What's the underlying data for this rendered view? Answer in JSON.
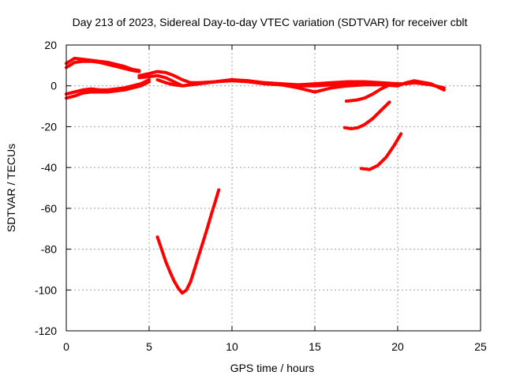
{
  "chart_data": {
    "type": "line",
    "title": "Day 213 of 2023, Sidereal Day-to-day VTEC variation (SDTVAR) for receiver cblt",
    "xlabel": "GPS time / hours",
    "ylabel": "SDTVAR / TECUs",
    "xlim": [
      0,
      25
    ],
    "ylim": [
      -120,
      20
    ],
    "xticks": [
      0,
      5,
      10,
      15,
      20,
      25
    ],
    "yticks": [
      -120,
      -100,
      -80,
      -60,
      -40,
      -20,
      0,
      20
    ],
    "grid": true,
    "legend": "none",
    "color": "#ff0000",
    "series": [
      {
        "x": [
          0,
          0.5,
          1,
          1.5,
          2,
          2.5,
          3,
          3.5,
          4,
          4.4
        ],
        "y": [
          11,
          13.5,
          13,
          12.5,
          12,
          11.5,
          10.5,
          9.5,
          8,
          7.5
        ]
      },
      {
        "x": [
          0,
          0.5,
          1,
          1.5,
          2,
          2.5,
          3,
          3.5,
          4,
          4.4
        ],
        "y": [
          9,
          11.5,
          12,
          12,
          11.5,
          10.5,
          9.5,
          8.5,
          7.5,
          7
        ]
      },
      {
        "x": [
          4.4,
          5,
          5.5,
          6,
          6.5,
          7,
          7.5,
          8,
          9,
          10,
          11,
          12,
          13,
          14,
          15,
          16,
          17,
          18,
          19,
          20,
          20.5,
          21,
          22,
          22.8
        ],
        "y": [
          5,
          6,
          7,
          6.5,
          5,
          3,
          1.5,
          1.5,
          2,
          3,
          2.5,
          1.5,
          1,
          0.5,
          1,
          1.5,
          2,
          2,
          1.5,
          1,
          1,
          1.5,
          0.5,
          -1
        ]
      },
      {
        "x": [
          4.4,
          5,
          5.5,
          6,
          6.5,
          7,
          7.5,
          8,
          9,
          10,
          11,
          12,
          13,
          14,
          15,
          16,
          17,
          18,
          19,
          20,
          20.5,
          21,
          22,
          22.8
        ],
        "y": [
          4,
          4.5,
          5,
          4,
          2,
          0,
          0.5,
          1,
          2,
          2.5,
          2,
          1,
          0.5,
          0,
          0,
          0.5,
          1,
          1.5,
          1,
          0,
          1.5,
          2.5,
          1,
          -2
        ]
      },
      {
        "x": [
          5.5,
          6,
          6.5,
          7,
          7.5,
          8,
          9,
          10,
          11,
          12,
          13,
          14,
          14.5,
          15,
          15.5,
          16,
          17,
          18,
          19,
          20
        ],
        "y": [
          3,
          1.5,
          0.5,
          0,
          0.5,
          1,
          2,
          3,
          2,
          1,
          0.5,
          -1,
          -2,
          -3,
          -2,
          -1,
          0,
          0.5,
          0.5,
          0
        ]
      },
      {
        "x": [
          0,
          0.5,
          1,
          1.5,
          2,
          2.5,
          3,
          3.5,
          4,
          4.5,
          5
        ],
        "y": [
          -4,
          -3,
          -2,
          -1.5,
          -2,
          -2,
          -1.5,
          -1,
          0,
          1,
          3
        ]
      },
      {
        "x": [
          0,
          0.5,
          1,
          1.5,
          2,
          2.5,
          3,
          3.5,
          4,
          4.5,
          5
        ],
        "y": [
          -6,
          -5,
          -3.5,
          -3,
          -3,
          -3,
          -2.5,
          -2,
          -1,
          0,
          2
        ]
      },
      {
        "x": [
          16.9,
          17.5,
          18,
          18.5,
          19,
          19.4
        ],
        "y": [
          -7.5,
          -7,
          -6,
          -4,
          -1.5,
          0
        ]
      },
      {
        "x": [
          16.8,
          17.2,
          17.6,
          18,
          18.5,
          19,
          19.5
        ],
        "y": [
          -20.5,
          -21,
          -20.5,
          -19,
          -16,
          -12,
          -8
        ]
      },
      {
        "x": [
          17.8,
          18.3,
          18.8,
          19.3,
          19.8,
          20.2
        ],
        "y": [
          -40.5,
          -41,
          -39,
          -35,
          -29,
          -23.5
        ]
      },
      {
        "x": [
          5.5,
          5.75,
          6,
          6.25,
          6.5,
          6.75,
          7,
          7.25,
          7.5,
          7.75,
          8,
          8.25,
          8.5,
          8.75,
          9,
          9.2
        ],
        "y": [
          -74,
          -80,
          -86,
          -91,
          -95.5,
          -99,
          -101.5,
          -100,
          -96,
          -89.5,
          -83,
          -76.5,
          -70,
          -63,
          -56.5,
          -51
        ]
      }
    ]
  }
}
